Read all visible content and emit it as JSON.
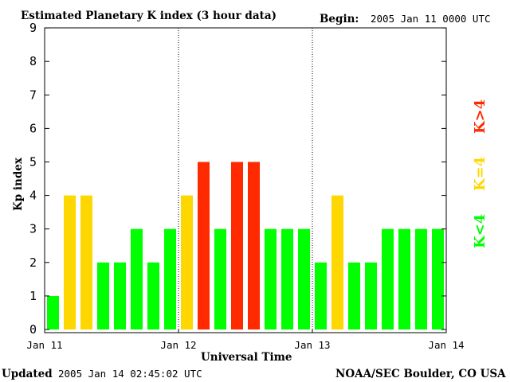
{
  "header": {
    "title": "Estimated Planetary K index (3 hour data)",
    "begin_label": "Begin:",
    "begin_value": "2005 Jan 11 0000 UTC"
  },
  "footer": {
    "updated_label": "Updated",
    "updated_value": "2005 Jan 14 02:45:02 UTC",
    "source": "NOAA/SEC Boulder, CO USA"
  },
  "legend": {
    "low": "K<4",
    "equal": "K=4",
    "high": "K>4"
  },
  "colors": {
    "low": "#00ff00",
    "equal": "#ffd700",
    "high": "#ff2a00",
    "axis": "#000000",
    "day_divider": "#000000"
  },
  "chart_data": {
    "type": "bar",
    "title": "Estimated Planetary K index (3 hour data)",
    "xlabel": "Universal Time",
    "ylabel": "Kp index",
    "ylim": [
      0,
      9
    ],
    "yticks": [
      0,
      1,
      2,
      3,
      4,
      5,
      6,
      7,
      8,
      9
    ],
    "x_tick_labels": [
      "Jan 11",
      "Jan 12",
      "Jan 13",
      "Jan 14"
    ],
    "bar_interval_hours": 3,
    "grid": false,
    "day_dividers": "dotted",
    "legend_placement": "right",
    "values": [
      1,
      4,
      4,
      2,
      2,
      3,
      2,
      3,
      4,
      5,
      3,
      5,
      5,
      3,
      3,
      3,
      2,
      4,
      2,
      2,
      3,
      3,
      3,
      3
    ]
  }
}
